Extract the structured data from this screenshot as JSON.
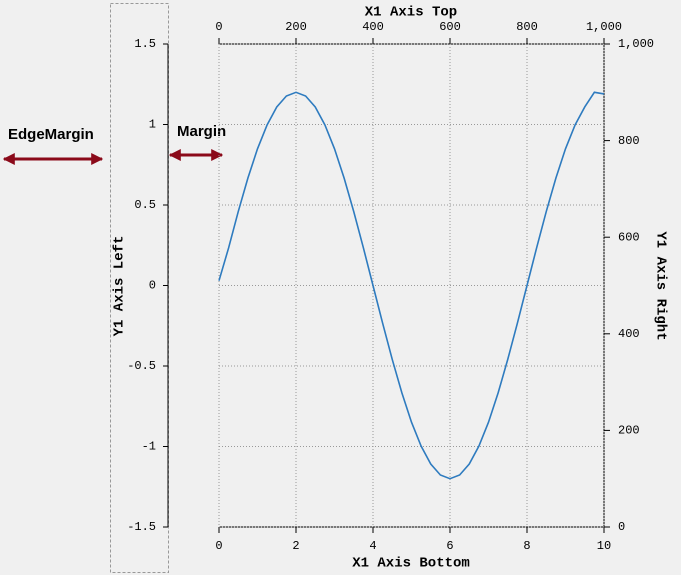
{
  "chart_data": {
    "type": "line",
    "title_top": "X1 Axis Top",
    "xlabel": "X1 Axis Bottom",
    "ylabel": "Y1 Axis Left",
    "y2label": "Y1 Axis Right",
    "annotations": [
      "EdgeMargin",
      "Margin"
    ],
    "x": [
      0,
      0.25,
      0.5,
      0.75,
      1,
      1.25,
      1.5,
      1.75,
      2,
      2.25,
      2.5,
      2.75,
      3,
      3.25,
      3.5,
      3.75,
      4,
      4.25,
      4.5,
      4.75,
      5,
      5.25,
      5.5,
      5.75,
      6,
      6.25,
      6.5,
      6.75,
      7,
      7.25,
      7.5,
      7.75,
      8,
      8.25,
      8.5,
      8.75,
      9,
      9.25,
      9.5,
      9.75,
      10
    ],
    "values": [
      0.03,
      0.234,
      0.459,
      0.667,
      0.849,
      0.998,
      1.109,
      1.177,
      1.2,
      1.177,
      1.109,
      0.998,
      0.849,
      0.667,
      0.459,
      0.234,
      0,
      -0.234,
      -0.459,
      -0.667,
      -0.849,
      -0.998,
      -1.109,
      -1.177,
      -1.2,
      -1.177,
      -1.109,
      -0.998,
      -0.849,
      -0.667,
      -0.459,
      -0.234,
      0,
      0.234,
      0.459,
      0.667,
      0.849,
      0.998,
      1.109,
      1.2,
      1.19
    ],
    "color": "#2e7bbf",
    "xlim": [
      0,
      10
    ],
    "xticks": [
      0,
      2,
      4,
      6,
      8,
      10
    ],
    "ylim": [
      -1.5,
      1.5
    ],
    "yticks": [
      -1.5,
      -1,
      -0.5,
      0,
      0.5,
      1,
      1.5
    ],
    "x2lim": [
      0,
      1000
    ],
    "x2ticks": [
      0,
      200,
      400,
      600,
      800,
      {
        "value": 1000,
        "label": "1,000"
      }
    ],
    "y2lim": [
      0,
      1000
    ],
    "y2ticks": [
      0,
      200,
      400,
      600,
      800,
      {
        "value": 1000,
        "label": "1,000"
      }
    ],
    "grid": true
  }
}
